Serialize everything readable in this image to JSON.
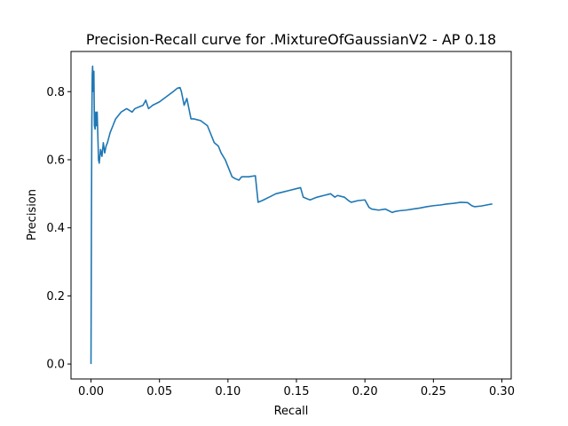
{
  "chart_data": {
    "type": "line",
    "title": "Precision-Recall curve for .MixtureOfGaussianV2 - AP 0.18",
    "xlabel": "Recall",
    "ylabel": "Precision",
    "xlim": [
      -0.0146,
      0.3068
    ],
    "ylim": [
      -0.044,
      0.918
    ],
    "xticks": [
      0.0,
      0.05,
      0.1,
      0.15,
      0.2,
      0.25,
      0.3
    ],
    "xtick_labels": [
      "0.00",
      "0.05",
      "0.10",
      "0.15",
      "0.20",
      "0.25",
      "0.30"
    ],
    "yticks": [
      0.0,
      0.2,
      0.4,
      0.6,
      0.8
    ],
    "ytick_labels": [
      "0.0",
      "0.2",
      "0.4",
      "0.6",
      "0.8"
    ],
    "grid": false,
    "line_color": "#1f77b4",
    "series": [
      {
        "x": [
          0.0,
          0.0003,
          0.0006,
          0.0009,
          0.0012,
          0.0015,
          0.0018,
          0.0021,
          0.0025,
          0.003,
          0.0035,
          0.004,
          0.0045,
          0.005,
          0.0055,
          0.006,
          0.007,
          0.008,
          0.009,
          0.01,
          0.011,
          0.012,
          0.014,
          0.016,
          0.018,
          0.02,
          0.022,
          0.024,
          0.026,
          0.028,
          0.03,
          0.032,
          0.035,
          0.038,
          0.04,
          0.042,
          0.045,
          0.05,
          0.055,
          0.06,
          0.063,
          0.065,
          0.066,
          0.068,
          0.07,
          0.071,
          0.073,
          0.075,
          0.08,
          0.085,
          0.088,
          0.09,
          0.093,
          0.095,
          0.098,
          0.1,
          0.103,
          0.105,
          0.108,
          0.11,
          0.115,
          0.12,
          0.122,
          0.125,
          0.13,
          0.135,
          0.14,
          0.145,
          0.15,
          0.153,
          0.155,
          0.158,
          0.16,
          0.165,
          0.17,
          0.175,
          0.178,
          0.18,
          0.185,
          0.188,
          0.19,
          0.195,
          0.2,
          0.203,
          0.205,
          0.21,
          0.215,
          0.22,
          0.222,
          0.225,
          0.23,
          0.235,
          0.24,
          0.245,
          0.25,
          0.255,
          0.26,
          0.265,
          0.27,
          0.275,
          0.278,
          0.28,
          0.285,
          0.29,
          0.293
        ],
        "y": [
          0.0,
          0.4,
          0.7,
          0.85,
          0.875,
          0.82,
          0.8,
          0.86,
          0.7,
          0.69,
          0.74,
          0.7,
          0.74,
          0.67,
          0.6,
          0.59,
          0.63,
          0.61,
          0.65,
          0.62,
          0.64,
          0.65,
          0.68,
          0.7,
          0.72,
          0.73,
          0.74,
          0.745,
          0.75,
          0.745,
          0.74,
          0.75,
          0.755,
          0.76,
          0.775,
          0.75,
          0.76,
          0.77,
          0.785,
          0.8,
          0.81,
          0.812,
          0.8,
          0.76,
          0.78,
          0.76,
          0.72,
          0.72,
          0.715,
          0.7,
          0.67,
          0.65,
          0.64,
          0.62,
          0.6,
          0.58,
          0.55,
          0.545,
          0.54,
          0.55,
          0.55,
          0.553,
          0.475,
          0.48,
          0.49,
          0.5,
          0.505,
          0.51,
          0.515,
          0.518,
          0.49,
          0.485,
          0.482,
          0.49,
          0.495,
          0.5,
          0.49,
          0.495,
          0.49,
          0.48,
          0.475,
          0.48,
          0.482,
          0.46,
          0.455,
          0.452,
          0.455,
          0.445,
          0.448,
          0.45,
          0.452,
          0.455,
          0.458,
          0.462,
          0.465,
          0.467,
          0.47,
          0.472,
          0.475,
          0.474,
          0.465,
          0.462,
          0.464,
          0.468,
          0.47
        ]
      }
    ]
  }
}
